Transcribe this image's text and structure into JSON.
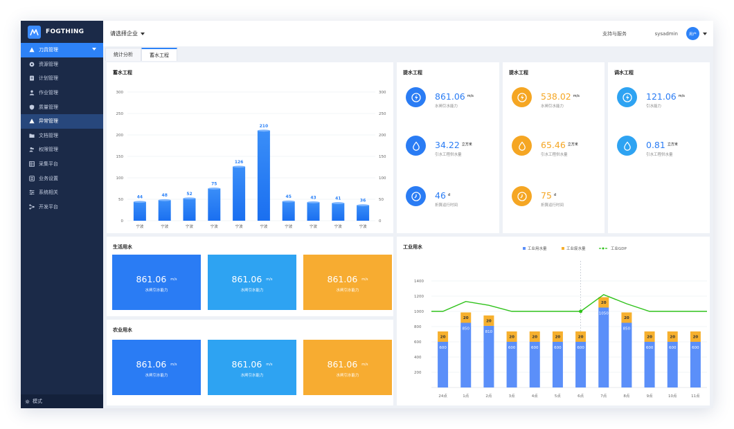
{
  "app": {
    "brand": "FOGTHING"
  },
  "sidebar": {
    "items": [
      {
        "label": "刀具管理",
        "icon": "warning-icon"
      },
      {
        "label": "资源管理",
        "icon": "resource-icon"
      },
      {
        "label": "计划管理",
        "icon": "document-icon"
      },
      {
        "label": "作业管理",
        "icon": "person-icon"
      },
      {
        "label": "质量管理",
        "icon": "shield-icon"
      },
      {
        "label": "异常管理",
        "icon": "warning-icon"
      },
      {
        "label": "文档管理",
        "icon": "folder-icon"
      },
      {
        "label": "权限管理",
        "icon": "users-icon"
      },
      {
        "label": "采集平台",
        "icon": "grid-icon"
      },
      {
        "label": "业务设置",
        "icon": "settings-icon"
      },
      {
        "label": "系统相关",
        "icon": "sliders-icon"
      },
      {
        "label": "开发平台",
        "icon": "nodes-icon"
      }
    ],
    "footer": "模式"
  },
  "header": {
    "company_select": "请选择企业",
    "support": "支持与服务",
    "username": "sysadmin",
    "avatar": "用户"
  },
  "tabs": [
    {
      "label": "统计分析"
    },
    {
      "label": "蓄水工程"
    }
  ],
  "storage_chart": {
    "title": "蓄水工程"
  },
  "stat_panels": [
    {
      "title": "提水工程",
      "rows": [
        {
          "value": "861.06",
          "unit": "m/s",
          "label": "水闸引水能力"
        },
        {
          "value": "34.22",
          "unit": "立方米",
          "label": "引水工程供水量"
        },
        {
          "value": "46",
          "unit": "d",
          "label": "折算运行时间"
        }
      ]
    },
    {
      "title": "提水工程",
      "rows": [
        {
          "value": "538.02",
          "unit": "m/s",
          "label": "水闸引水能力"
        },
        {
          "value": "65.46",
          "unit": "立方米",
          "label": "引水工程供水量"
        },
        {
          "value": "75",
          "unit": "d",
          "label": "折算运行时间"
        }
      ]
    },
    {
      "title": "调水工程",
      "rows": [
        {
          "value": "121.06",
          "unit": "m/s",
          "label": "引水能力"
        },
        {
          "value": "0.81",
          "unit": "立方米",
          "label": "引水工程供水量"
        }
      ]
    }
  ],
  "domestic": {
    "title": "生活用水",
    "cards": [
      {
        "value": "861.06",
        "unit": "m/s",
        "label": "水闸引水能力",
        "color": "#2a7cf4"
      },
      {
        "value": "861.06",
        "unit": "m/s",
        "label": "水闸引水能力",
        "color": "#2ea3f2"
      },
      {
        "value": "861.06",
        "unit": "m/s",
        "label": "水闸引水能力",
        "color": "#f7ac31"
      }
    ]
  },
  "agriculture": {
    "title": "农业用水",
    "cards": [
      {
        "value": "861.06",
        "unit": "m/s",
        "label": "水闸引水能力",
        "color": "#2a7cf4"
      },
      {
        "value": "861.06",
        "unit": "m/s",
        "label": "水闸引水能力",
        "color": "#2ea3f2"
      },
      {
        "value": "861.06",
        "unit": "m/s",
        "label": "水闸引水能力",
        "color": "#f7ac31"
      }
    ]
  },
  "industrial_chart": {
    "title": "工业用水"
  },
  "chart_data": [
    {
      "type": "bar",
      "title": "蓄水工程",
      "categories": [
        "宁波",
        "宁波",
        "宁波",
        "宁波",
        "宁波",
        "宁波",
        "宁波",
        "宁波",
        "宁波",
        "宁波"
      ],
      "values": [
        44,
        48,
        52,
        75,
        126,
        210,
        45,
        43,
        41,
        36
      ],
      "ylim": [
        0,
        300
      ],
      "yticks": [
        0,
        50,
        100,
        150,
        200,
        250,
        300
      ],
      "right_axis_ticks": [
        0,
        50,
        100,
        150,
        200,
        250,
        300
      ],
      "color": "#2d82f7"
    },
    {
      "type": "bar",
      "title": "工业用水",
      "categories": [
        "24点",
        "1点",
        "2点",
        "3点",
        "4点",
        "5点",
        "6点",
        "7点",
        "8点",
        "9点",
        "10点",
        "11点"
      ],
      "series": [
        {
          "name": "工业用水量",
          "stack": true,
          "values": [
            600,
            850,
            810,
            600,
            600,
            600,
            600,
            1050,
            850,
            600,
            600,
            600
          ],
          "color": "#5b8ff9"
        },
        {
          "name": "工业废水量",
          "stack": true,
          "values": [
            20,
            20,
            20,
            20,
            20,
            20,
            20,
            20,
            20,
            20,
            20,
            20
          ],
          "color": "#f6b02e"
        },
        {
          "name": "工业GDP",
          "type": "line",
          "values": [
            1000,
            1130,
            1080,
            1000,
            1000,
            1000,
            1000,
            1220,
            1100,
            1000,
            1000,
            1000
          ],
          "color": "#2fc21a"
        }
      ],
      "ylim": [
        0,
        1400
      ],
      "yticks": [
        200,
        400,
        600,
        800,
        1000,
        1200,
        1400
      ],
      "legend_position": "top"
    }
  ]
}
